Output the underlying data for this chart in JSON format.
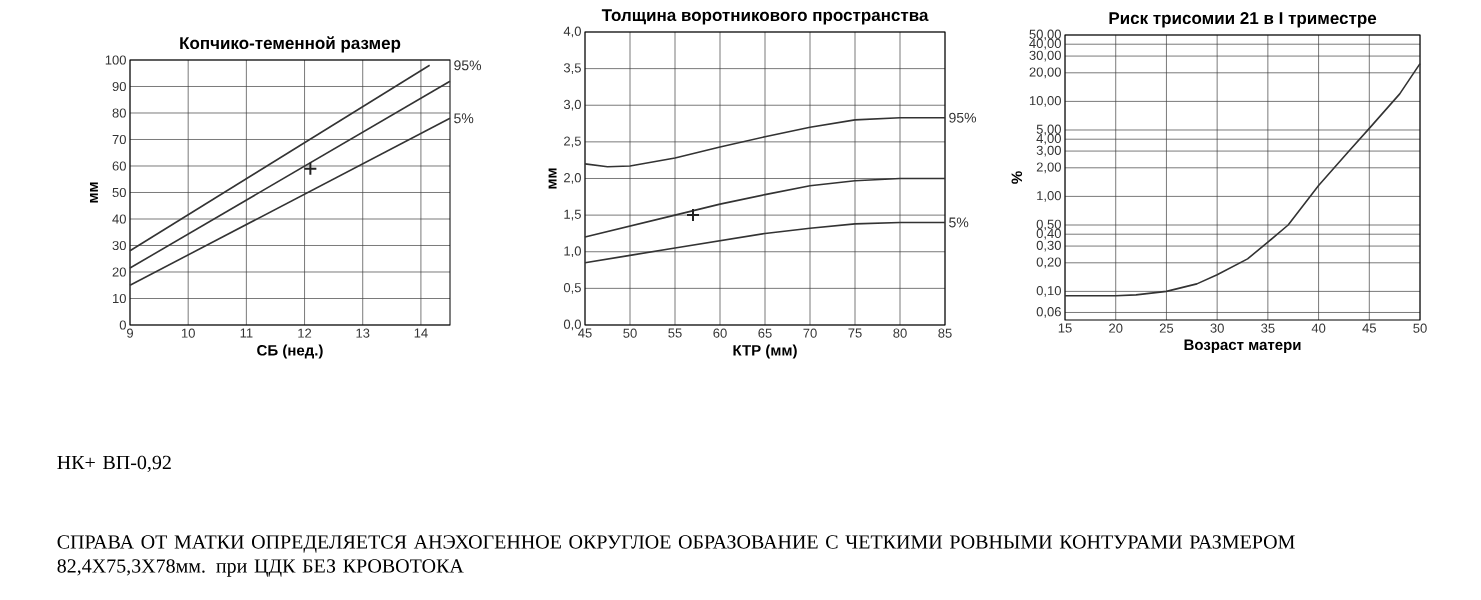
{
  "chart_data": [
    {
      "type": "line",
      "title": "Копчико-теменной размер",
      "xlabel": "СБ (нед.)",
      "ylabel": "мм",
      "xlim": [
        9,
        14.5
      ],
      "ylim": [
        0,
        100
      ],
      "xticks": [
        9,
        10,
        11,
        12,
        13,
        14
      ],
      "yticks": [
        0,
        10,
        20,
        30,
        40,
        50,
        60,
        70,
        80,
        90,
        100
      ],
      "grid": true,
      "series": [
        {
          "name": "95%",
          "color": "#333333",
          "x": [
            9,
            14.15
          ],
          "values": [
            28,
            98
          ]
        },
        {
          "color": "#333333",
          "x": [
            9,
            14.5
          ],
          "values": [
            21.5,
            92
          ]
        },
        {
          "name": "5%",
          "color": "#333333",
          "x": [
            9,
            14.5
          ],
          "values": [
            15,
            78
          ]
        },
        {
          "type": "scatter",
          "marker": "cross",
          "color": "#222222",
          "x": [
            12.1
          ],
          "values": [
            59
          ]
        }
      ],
      "annotations": [
        "НК+ ВП-0,92",
        "СПРАВА ОТ МАТКИ ОПРЕДЕЛЯЕТСЯ АНЭХОГЕННОЕ ОКРУГЛОЕ ОБРАЗОВАНИЕ С ЧЕТКИМИ РОВНЫМИ КОНТУРАМИ  РАЗМЕРОМ 82,4Х75,3Х78мм. при ЦДК БЕЗ КРОВОТОКА"
      ]
    },
    {
      "type": "line",
      "title": "Толщина воротникового пространства",
      "xlabel": "КТР (мм)",
      "ylabel": "мм",
      "xlim": [
        45,
        85
      ],
      "ylim": [
        0,
        4
      ],
      "xticks": [
        45,
        50,
        55,
        60,
        65,
        70,
        75,
        80,
        85
      ],
      "yticks": [
        {
          "value": 0,
          "label": "0,0"
        },
        {
          "value": 0.5,
          "label": "0,5"
        },
        {
          "value": 1,
          "label": "1,0"
        },
        {
          "value": 1.5,
          "label": "1,5"
        },
        {
          "value": 2,
          "label": "2,0"
        },
        {
          "value": 2.5,
          "label": "2,5"
        },
        {
          "value": 3,
          "label": "3,0"
        },
        {
          "value": 3.5,
          "label": "3,5"
        },
        {
          "value": 4,
          "label": "4,0"
        }
      ],
      "grid": true,
      "series": [
        {
          "name": "95%",
          "color": "#333333",
          "x": [
            45,
            47.5,
            50,
            55,
            60,
            65,
            70,
            75,
            80,
            85
          ],
          "values": [
            2.2,
            2.16,
            2.17,
            2.28,
            2.43,
            2.57,
            2.7,
            2.8,
            2.83,
            2.83
          ]
        },
        {
          "color": "#333333",
          "x": [
            45,
            50,
            55,
            60,
            65,
            70,
            75,
            80,
            85
          ],
          "values": [
            1.2,
            1.35,
            1.5,
            1.65,
            1.78,
            1.9,
            1.97,
            2.0,
            2.0
          ]
        },
        {
          "name": "5%",
          "color": "#333333",
          "x": [
            45,
            50,
            55,
            60,
            65,
            70,
            75,
            80,
            85
          ],
          "values": [
            0.85,
            0.95,
            1.05,
            1.15,
            1.25,
            1.32,
            1.38,
            1.4,
            1.4
          ]
        },
        {
          "type": "scatter",
          "marker": "cross",
          "color": "#222222",
          "x": [
            57
          ],
          "values": [
            1.5
          ]
        }
      ]
    },
    {
      "type": "line",
      "title": "Риск трисомии 21 в I триместре",
      "xlabel": "Возраст матери",
      "ylabel": "%",
      "log": "y",
      "xlim": [
        15,
        50
      ],
      "ylim": [
        0.05,
        50
      ],
      "xticks": [
        15,
        20,
        25,
        30,
        35,
        40,
        45,
        50
      ],
      "yticks": [
        {
          "value": 0.06,
          "label": "0,06"
        },
        {
          "value": 0.1,
          "label": "0,10"
        },
        {
          "value": 0.2,
          "label": "0,20"
        },
        {
          "value": 0.3,
          "label": "0,30"
        },
        {
          "value": 0.4,
          "label": "0,40"
        },
        {
          "value": 0.5,
          "label": "0,50"
        },
        {
          "value": 1,
          "label": "1,00"
        },
        {
          "value": 2,
          "label": "2,00"
        },
        {
          "value": 3,
          "label": "3,00"
        },
        {
          "value": 4,
          "label": "4,00"
        },
        {
          "value": 5,
          "label": "5,00"
        },
        {
          "value": 10,
          "label": "10,00"
        },
        {
          "value": 20,
          "label": "20,00"
        },
        {
          "value": 30,
          "label": "30,00"
        },
        {
          "value": 40,
          "label": "40,00"
        },
        {
          "value": 50,
          "label": "50,00"
        }
      ],
      "grid": true,
      "series": [
        {
          "color": "#333333",
          "x": [
            15,
            20,
            22,
            25,
            28,
            30,
            33,
            35,
            37,
            40,
            43,
            45,
            48,
            50
          ],
          "values": [
            0.09,
            0.09,
            0.092,
            0.1,
            0.12,
            0.15,
            0.22,
            0.33,
            0.5,
            1.3,
            3,
            5.2,
            12,
            25
          ]
        }
      ]
    }
  ]
}
